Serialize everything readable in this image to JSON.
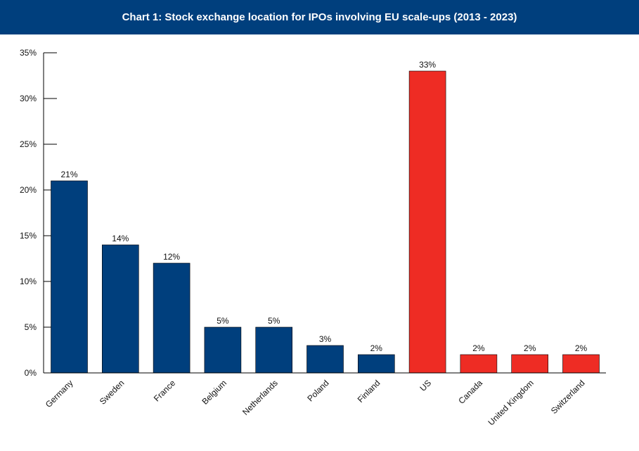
{
  "header": {
    "title": "Chart 1: Stock exchange location for IPOs involving EU scale-ups (2013 - 2023)"
  },
  "colors": {
    "header_bg": "#003F7D",
    "eu_bar": "#003F7D",
    "non_eu_bar": "#EE2C24",
    "axis": "#000000"
  },
  "chart_data": {
    "type": "bar",
    "title": "Chart 1: Stock exchange location for IPOs involving EU scale-ups (2013 - 2023)",
    "xlabel": "",
    "ylabel": "",
    "ylim": [
      0,
      35
    ],
    "yticks": [
      0,
      5,
      10,
      15,
      20,
      25,
      30,
      35
    ],
    "ytick_labels": [
      "0%",
      "5%",
      "10%",
      "15%",
      "20%",
      "25%",
      "30%",
      "35%"
    ],
    "categories": [
      "Germany",
      "Sweden",
      "France",
      "Belgium",
      "Netherlands",
      "Poland",
      "Finland",
      "US",
      "Canada",
      "United Kingdom",
      "Switzerland"
    ],
    "values": [
      21,
      14,
      12,
      5,
      5,
      3,
      2,
      33,
      2,
      2,
      2
    ],
    "data_labels": [
      "21%",
      "14%",
      "12%",
      "5%",
      "5%",
      "3%",
      "2%",
      "33%",
      "2%",
      "2%",
      "2%"
    ],
    "bar_colors": [
      "#003F7D",
      "#003F7D",
      "#003F7D",
      "#003F7D",
      "#003F7D",
      "#003F7D",
      "#003F7D",
      "#EE2C24",
      "#EE2C24",
      "#EE2C24",
      "#EE2C24"
    ],
    "grid": false,
    "legend": "none"
  }
}
